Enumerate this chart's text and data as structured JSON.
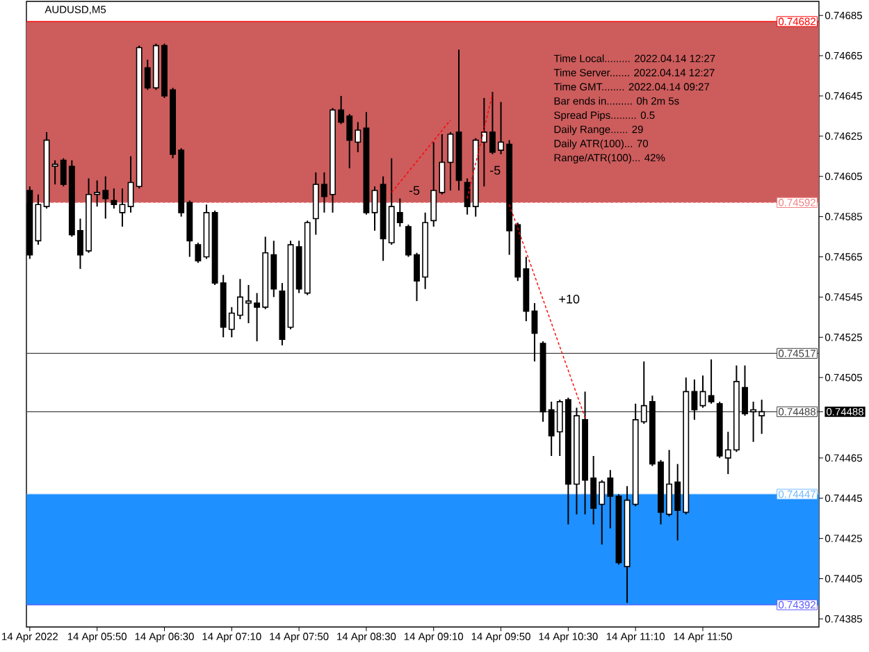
{
  "chart_data": {
    "type": "candlestick",
    "title": "AUDUSD,M5",
    "color": "#000000",
    "x": [
      "2022-04-14T05:10",
      "2022-04-14T05:15",
      "2022-04-14T05:20",
      "2022-04-14T05:25",
      "2022-04-14T05:30",
      "2022-04-14T05:35",
      "2022-04-14T05:40",
      "2022-04-14T05:45",
      "2022-04-14T05:50",
      "2022-04-14T05:55",
      "2022-04-14T06:00",
      "2022-04-14T06:05",
      "2022-04-14T06:10",
      "2022-04-14T06:15",
      "2022-04-14T06:20",
      "2022-04-14T06:25",
      "2022-04-14T06:30",
      "2022-04-14T06:35",
      "2022-04-14T06:40",
      "2022-04-14T06:45",
      "2022-04-14T06:50",
      "2022-04-14T06:55",
      "2022-04-14T07:00",
      "2022-04-14T07:05",
      "2022-04-14T07:10",
      "2022-04-14T07:15",
      "2022-04-14T07:20",
      "2022-04-14T07:25",
      "2022-04-14T07:30",
      "2022-04-14T07:35",
      "2022-04-14T07:40",
      "2022-04-14T07:45",
      "2022-04-14T07:50",
      "2022-04-14T07:55",
      "2022-04-14T08:00",
      "2022-04-14T08:05",
      "2022-04-14T08:10",
      "2022-04-14T08:15",
      "2022-04-14T08:20",
      "2022-04-14T08:25",
      "2022-04-14T08:30",
      "2022-04-14T08:35",
      "2022-04-14T08:40",
      "2022-04-14T08:45",
      "2022-04-14T08:50",
      "2022-04-14T08:55",
      "2022-04-14T09:00",
      "2022-04-14T09:05",
      "2022-04-14T09:10",
      "2022-04-14T09:15",
      "2022-04-14T09:20",
      "2022-04-14T09:25",
      "2022-04-14T09:30",
      "2022-04-14T09:35",
      "2022-04-14T09:40",
      "2022-04-14T09:45",
      "2022-04-14T09:50",
      "2022-04-14T09:55",
      "2022-04-14T10:00",
      "2022-04-14T10:05",
      "2022-04-14T10:10",
      "2022-04-14T10:15",
      "2022-04-14T10:20",
      "2022-04-14T10:25",
      "2022-04-14T10:30",
      "2022-04-14T10:35",
      "2022-04-14T10:40",
      "2022-04-14T10:45",
      "2022-04-14T10:50",
      "2022-04-14T10:55",
      "2022-04-14T11:00",
      "2022-04-14T11:05",
      "2022-04-14T11:10",
      "2022-04-14T11:15",
      "2022-04-14T11:20",
      "2022-04-14T11:25",
      "2022-04-14T11:30",
      "2022-04-14T11:35",
      "2022-04-14T11:40",
      "2022-04-14T11:45",
      "2022-04-14T11:50",
      "2022-04-14T11:55",
      "2022-04-14T12:00",
      "2022-04-14T12:05",
      "2022-04-14T12:10",
      "2022-04-14T12:15",
      "2022-04-14T12:20",
      "2022-04-14T12:25"
    ],
    "ohlc": [
      [
        0.74598,
        0.746,
        0.74564,
        0.74566
      ],
      [
        0.74573,
        0.74596,
        0.74571,
        0.74591
      ],
      [
        0.7459,
        0.74627,
        0.74589,
        0.74623
      ],
      [
        0.7461,
        0.74613,
        0.74601,
        0.74611
      ],
      [
        0.74613,
        0.74614,
        0.746,
        0.74601
      ],
      [
        0.7461,
        0.74613,
        0.74575,
        0.74576
      ],
      [
        0.74578,
        0.74584,
        0.74559,
        0.74566
      ],
      [
        0.74568,
        0.74604,
        0.74567,
        0.74596
      ],
      [
        0.74596,
        0.74603,
        0.7459,
        0.74597
      ],
      [
        0.74598,
        0.74605,
        0.74584,
        0.74594
      ],
      [
        0.74593,
        0.74599,
        0.74589,
        0.74591
      ],
      [
        0.74587,
        0.74599,
        0.7458,
        0.74591
      ],
      [
        0.7459,
        0.74615,
        0.74587,
        0.74602
      ],
      [
        0.746,
        0.7467,
        0.74599,
        0.74669
      ],
      [
        0.74659,
        0.74663,
        0.74648,
        0.74649
      ],
      [
        0.74649,
        0.74671,
        0.74648,
        0.7467
      ],
      [
        0.7467,
        0.74671,
        0.74644,
        0.74645
      ],
      [
        0.74648,
        0.74649,
        0.74614,
        0.74616
      ],
      [
        0.74618,
        0.74619,
        0.74585,
        0.74587
      ],
      [
        0.74592,
        0.74593,
        0.74565,
        0.74573
      ],
      [
        0.74571,
        0.74572,
        0.74562,
        0.74563
      ],
      [
        0.74565,
        0.74591,
        0.74564,
        0.74587
      ],
      [
        0.74587,
        0.74588,
        0.74551,
        0.74552
      ],
      [
        0.74552,
        0.74556,
        0.74525,
        0.7453
      ],
      [
        0.74529,
        0.7454,
        0.74525,
        0.74537
      ],
      [
        0.74536,
        0.74554,
        0.74534,
        0.74545
      ],
      [
        0.74542,
        0.74551,
        0.74532,
        0.74543
      ],
      [
        0.74542,
        0.74547,
        0.74523,
        0.7454
      ],
      [
        0.7454,
        0.74575,
        0.74539,
        0.74567
      ],
      [
        0.74566,
        0.74573,
        0.74545,
        0.74549
      ],
      [
        0.74548,
        0.74552,
        0.74521,
        0.74524
      ],
      [
        0.7453,
        0.74573,
        0.74529,
        0.74571
      ],
      [
        0.7457,
        0.74573,
        0.74547,
        0.74549
      ],
      [
        0.74547,
        0.74583,
        0.74546,
        0.74582
      ],
      [
        0.74584,
        0.74607,
        0.74576,
        0.74601
      ],
      [
        0.74601,
        0.74607,
        0.74587,
        0.74595
      ],
      [
        0.74596,
        0.74639,
        0.74587,
        0.74638
      ],
      [
        0.74638,
        0.74645,
        0.74631,
        0.74632
      ],
      [
        0.74635,
        0.74636,
        0.74609,
        0.74623
      ],
      [
        0.74622,
        0.74632,
        0.74617,
        0.74628
      ],
      [
        0.74629,
        0.74637,
        0.74586,
        0.74587
      ],
      [
        0.74587,
        0.746,
        0.74578,
        0.74598
      ],
      [
        0.74601,
        0.74605,
        0.74563,
        0.74574
      ],
      [
        0.74572,
        0.74614,
        0.74571,
        0.7459
      ],
      [
        0.74587,
        0.74594,
        0.7458,
        0.74582
      ],
      [
        0.7458,
        0.74581,
        0.74565,
        0.74566
      ],
      [
        0.74566,
        0.74567,
        0.74543,
        0.74553
      ],
      [
        0.74555,
        0.74587,
        0.74549,
        0.74582
      ],
      [
        0.74583,
        0.74622,
        0.7458,
        0.74598
      ],
      [
        0.74597,
        0.74626,
        0.74596,
        0.74612
      ],
      [
        0.74612,
        0.74627,
        0.74598,
        0.74626
      ],
      [
        0.74627,
        0.74668,
        0.74598,
        0.74603
      ],
      [
        0.74602,
        0.74604,
        0.74586,
        0.7459
      ],
      [
        0.7459,
        0.74624,
        0.74585,
        0.74623
      ],
      [
        0.74622,
        0.74644,
        0.746,
        0.74627
      ],
      [
        0.74627,
        0.74647,
        0.74616,
        0.74617
      ],
      [
        0.74618,
        0.74642,
        0.74616,
        0.74622
      ],
      [
        0.74621,
        0.74623,
        0.74566,
        0.74578
      ],
      [
        0.74581,
        0.74582,
        0.74553,
        0.74555
      ],
      [
        0.74559,
        0.74565,
        0.74533,
        0.74538
      ],
      [
        0.74538,
        0.74542,
        0.74513,
        0.74527
      ],
      [
        0.74522,
        0.74523,
        0.74483,
        0.74488
      ],
      [
        0.74489,
        0.74493,
        0.74466,
        0.74476
      ],
      [
        0.74478,
        0.74494,
        0.74466,
        0.74493
      ],
      [
        0.74494,
        0.74495,
        0.74432,
        0.74452
      ],
      [
        0.74452,
        0.7449,
        0.74437,
        0.74486
      ],
      [
        0.74484,
        0.74498,
        0.74437,
        0.74454
      ],
      [
        0.74455,
        0.74466,
        0.74432,
        0.7444
      ],
      [
        0.74442,
        0.74454,
        0.74422,
        0.74453
      ],
      [
        0.74455,
        0.74459,
        0.7443,
        0.74446
      ],
      [
        0.74446,
        0.74447,
        0.74412,
        0.74413
      ],
      [
        0.74411,
        0.74451,
        0.74393,
        0.74444
      ],
      [
        0.74442,
        0.74492,
        0.74441,
        0.74484
      ],
      [
        0.74483,
        0.74513,
        0.74482,
        0.74491
      ],
      [
        0.74493,
        0.74496,
        0.74461,
        0.74462
      ],
      [
        0.74463,
        0.74464,
        0.74432,
        0.74438
      ],
      [
        0.74437,
        0.74469,
        0.74436,
        0.74452
      ],
      [
        0.74453,
        0.74462,
        0.74424,
        0.74439
      ],
      [
        0.74438,
        0.74505,
        0.74437,
        0.74498
      ],
      [
        0.74498,
        0.74504,
        0.74484,
        0.74489
      ],
      [
        0.74491,
        0.74506,
        0.7449,
        0.74498
      ],
      [
        0.74496,
        0.74514,
        0.74492,
        0.74493
      ],
      [
        0.74492,
        0.74493,
        0.74465,
        0.74466
      ],
      [
        0.74465,
        0.74478,
        0.74457,
        0.74469
      ],
      [
        0.74469,
        0.74511,
        0.74468,
        0.74503
      ],
      [
        0.745,
        0.74511,
        0.74486,
        0.74487
      ],
      [
        0.74488,
        0.74493,
        0.74473,
        0.74489
      ],
      [
        0.74486,
        0.74494,
        0.74477,
        0.74488
      ]
    ],
    "series": [
      {
        "type": "line",
        "x": [
          "2022-04-14T08:45",
          "2022-04-14T09:20"
        ],
        "values": [
          0.74597,
          0.74633
        ],
        "color": "#ff0000",
        "line_style": "dashed"
      },
      {
        "type": "line",
        "x": [
          "2022-04-14T09:30",
          "2022-04-14T09:45"
        ],
        "values": [
          0.74594,
          0.74646
        ],
        "color": "#ff0000",
        "line_style": "dashed"
      },
      {
        "type": "line",
        "x": [
          "2022-04-14T09:55",
          "2022-04-14T10:40"
        ],
        "values": [
          0.74591,
          0.74485
        ],
        "color": "#ff0000",
        "line_style": "dashed"
      }
    ],
    "xlim": [
      "2022-04-14T05:08",
      "2022-04-14T12:59"
    ],
    "xticks": [
      {
        "value": "2022-04-14T05:10",
        "label": "14 Apr 2022"
      },
      {
        "value": "2022-04-14T05:50",
        "label": "14 Apr 05:50"
      },
      {
        "value": "2022-04-14T06:30",
        "label": "14 Apr 06:30"
      },
      {
        "value": "2022-04-14T07:10",
        "label": "14 Apr 07:10"
      },
      {
        "value": "2022-04-14T07:50",
        "label": "14 Apr 07:50"
      },
      {
        "value": "2022-04-14T08:30",
        "label": "14 Apr 08:30"
      },
      {
        "value": "2022-04-14T09:10",
        "label": "14 Apr 09:10"
      },
      {
        "value": "2022-04-14T09:50",
        "label": "14 Apr 09:50"
      },
      {
        "value": "2022-04-14T10:30",
        "label": "14 Apr 10:30"
      },
      {
        "value": "2022-04-14T11:10",
        "label": "14 Apr 11:10"
      },
      {
        "value": "2022-04-14T11:50",
        "label": "14 Apr 11:50"
      }
    ],
    "ylim": [
      0.74381,
      0.74692
    ],
    "yticks": [
      0.74385,
      0.74405,
      0.74425,
      0.74445,
      0.74465,
      {
        "value": 0.74488,
        "label": "0.74488"
      },
      0.74505,
      0.74525,
      0.74545,
      0.74565,
      0.74585,
      0.74605,
      0.74625,
      0.74645,
      0.74665,
      0.74685
    ],
    "bands": [
      {
        "axis": "y",
        "from": 0.74592,
        "to": 0.74682,
        "color": "#cd5c5c"
      },
      {
        "axis": "y",
        "from": 0.74392,
        "to": 0.74447,
        "color": "#1e90ff"
      }
    ],
    "ref_lines": [
      {
        "axis": "y",
        "value": 0.74682,
        "label": "0.74682",
        "color": "#ff0000"
      },
      {
        "axis": "y",
        "value": 0.74592,
        "label": "0.74592",
        "color": "#f08080",
        "line_style": "dashed"
      },
      {
        "axis": "y",
        "value": 0.74517,
        "label": "0.74517",
        "color": "#404040"
      },
      {
        "axis": "y",
        "value": 0.74488,
        "label": "0.74488",
        "color": "#404040"
      },
      {
        "axis": "y",
        "value": 0.74447,
        "label": "0.74447",
        "color": "#70b8ff"
      },
      {
        "axis": "y",
        "value": 0.74392,
        "label": "0.74392",
        "color": "#5a5aff"
      }
    ],
    "annotations": [
      "Time Local......... 2022.04.14 12:27",
      "Time Server....... 2022.04.14 12:27",
      "Time GMT........ 2022.04.14 09:27",
      "Bar ends in......... 0h 2m 5s",
      "Spread Pips......... 0.5",
      "Daily Range...... 29",
      "Daily ATR(100)... 70",
      "Range/ATR(100)... 42%",
      {
        "text": "-5",
        "x": "2022-04-14T08:46",
        "y": 0.74598
      },
      {
        "text": "-5",
        "x": "2022-04-14T09:34",
        "y": 0.74608
      },
      {
        "text": "+10",
        "x": "2022-04-14T10:15",
        "y": 0.74544
      }
    ]
  }
}
